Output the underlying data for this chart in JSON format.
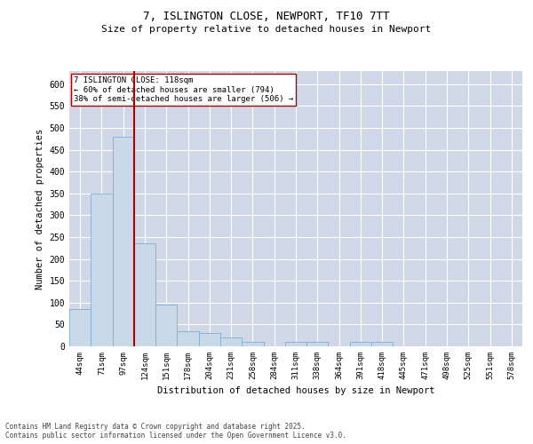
{
  "title1": "7, ISLINGTON CLOSE, NEWPORT, TF10 7TT",
  "title2": "Size of property relative to detached houses in Newport",
  "xlabel": "Distribution of detached houses by size in Newport",
  "ylabel": "Number of detached properties",
  "categories": [
    "44sqm",
    "71sqm",
    "97sqm",
    "124sqm",
    "151sqm",
    "178sqm",
    "204sqm",
    "231sqm",
    "258sqm",
    "284sqm",
    "311sqm",
    "338sqm",
    "364sqm",
    "391sqm",
    "418sqm",
    "445sqm",
    "471sqm",
    "498sqm",
    "525sqm",
    "551sqm",
    "578sqm"
  ],
  "values": [
    85,
    350,
    480,
    235,
    95,
    35,
    30,
    20,
    10,
    0,
    10,
    10,
    0,
    10,
    10,
    0,
    0,
    0,
    0,
    0,
    0
  ],
  "bar_color": "#c9d9e8",
  "bar_edge_color": "#7bafd4",
  "annotation_line1": "7 ISLINGTON CLOSE: 118sqm",
  "annotation_line2": "← 60% of detached houses are smaller (794)",
  "annotation_line3": "38% of semi-detached houses are larger (506) →",
  "vline_color": "#aa0000",
  "annotation_box_edge": "#aa0000",
  "ylim": [
    0,
    630
  ],
  "yticks": [
    0,
    50,
    100,
    150,
    200,
    250,
    300,
    350,
    400,
    450,
    500,
    550,
    600
  ],
  "bg_color": "#ffffff",
  "grid_color": "#d0d8e8",
  "footer1": "Contains HM Land Registry data © Crown copyright and database right 2025.",
  "footer2": "Contains public sector information licensed under the Open Government Licence v3.0."
}
